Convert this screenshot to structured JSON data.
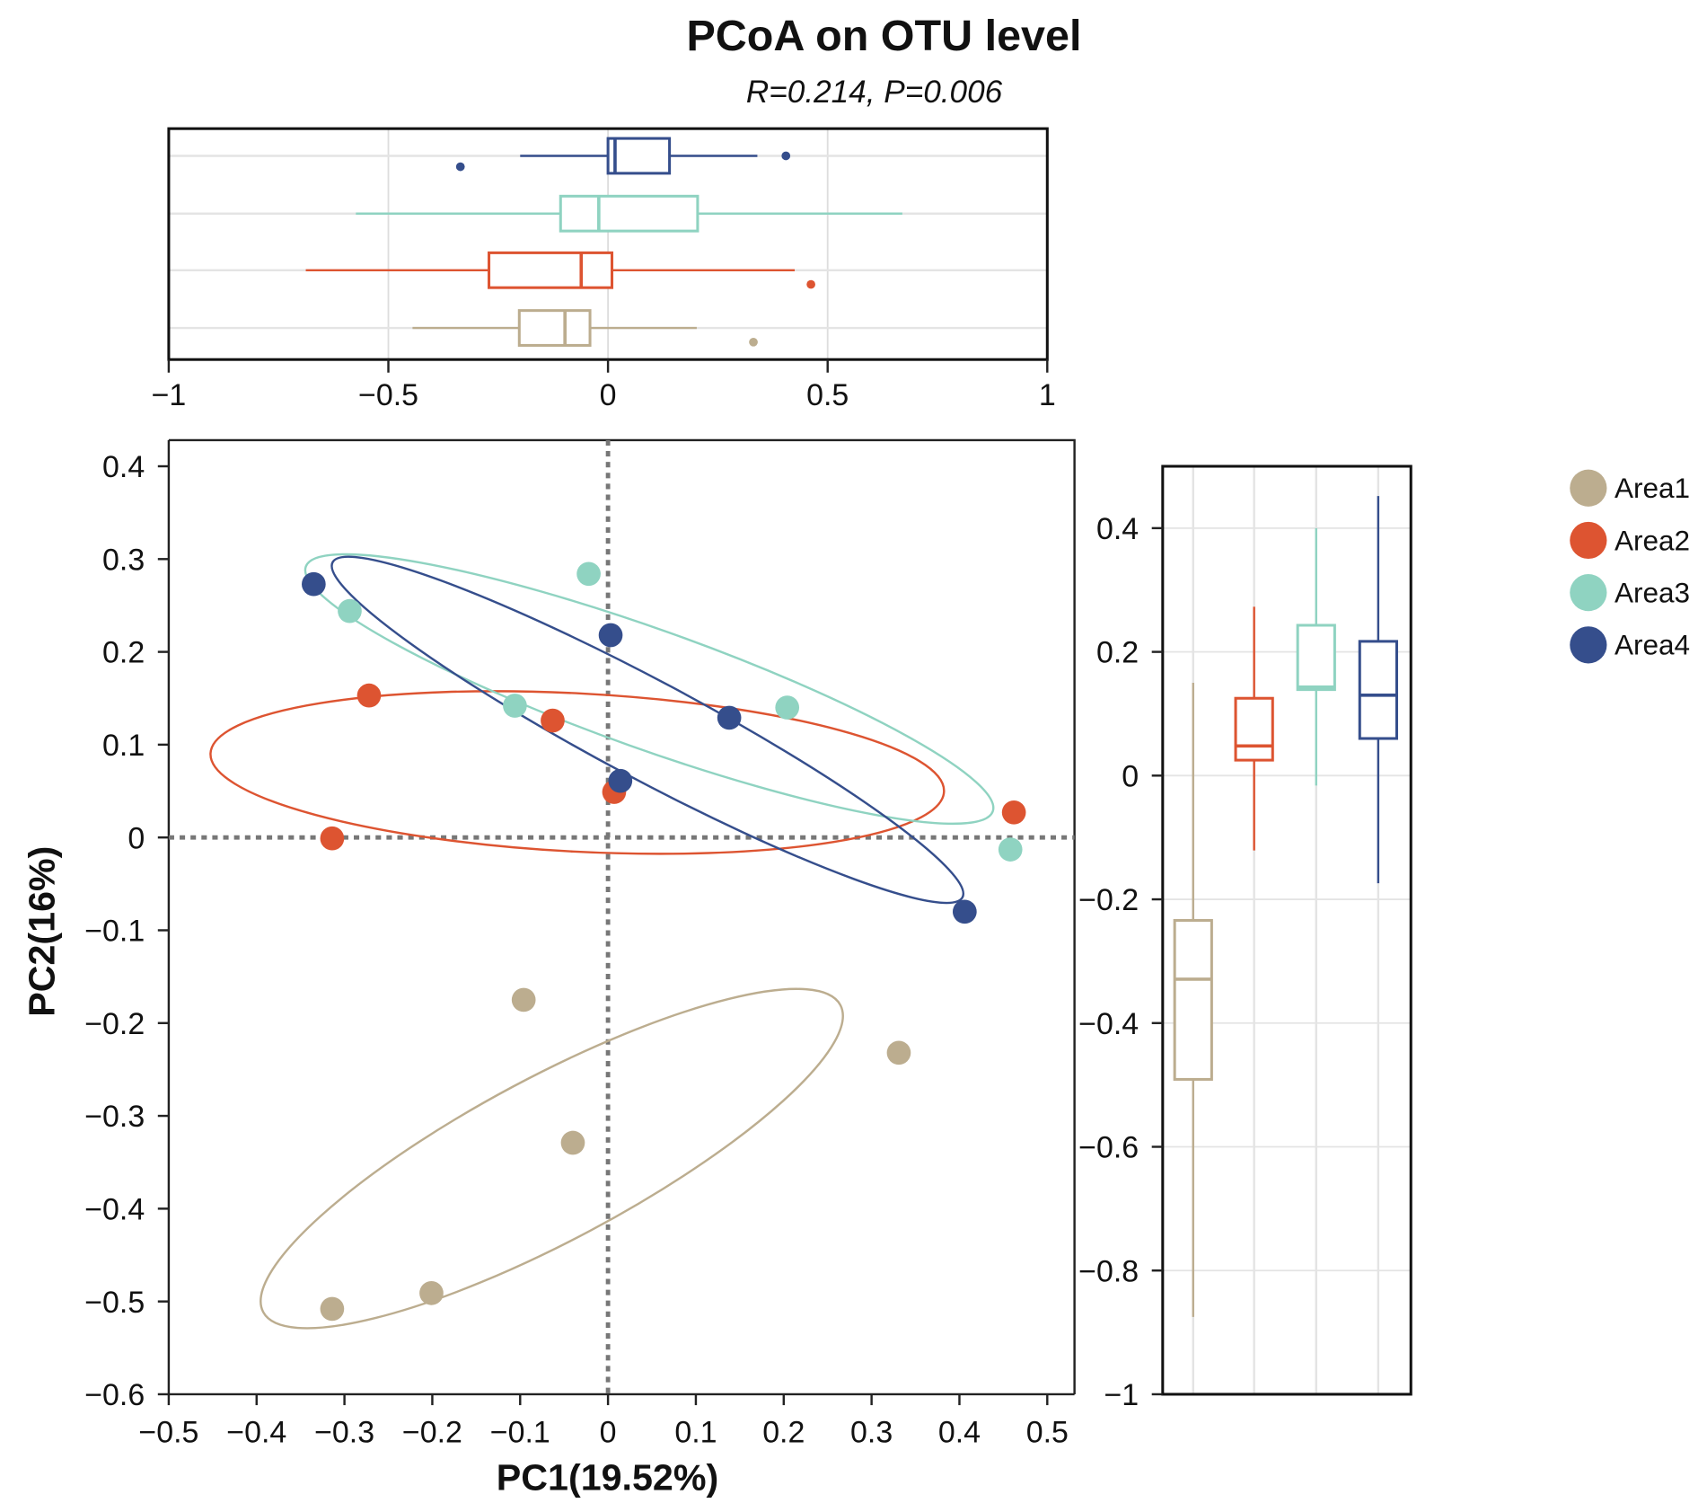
{
  "chart_data": {
    "type": "scatter",
    "title": "PCoA on OTU level",
    "subtitle": "R=0.214, P=0.006",
    "xlabel": "PC1(19.52%)",
    "ylabel": "PC2(16%)",
    "xlim": [
      -0.5,
      0.5
    ],
    "ylim": [
      -0.6,
      0.4
    ],
    "xticks": [
      "−0.5",
      "−0.4",
      "−0.3",
      "−0.2",
      "−0.1",
      "0",
      "0.1",
      "0.2",
      "0.3",
      "0.4",
      "0.5"
    ],
    "yticks": [
      "0.4",
      "0.3",
      "0.2",
      "0.1",
      "0",
      "−0.1",
      "−0.2",
      "−0.3",
      "−0.4",
      "−0.5",
      "−0.6"
    ],
    "legend": {
      "placement": "right",
      "entries": [
        "Area1",
        "Area2",
        "Area3",
        "Area4"
      ]
    },
    "series": [
      {
        "name": "Area1",
        "color": "#bcad8f",
        "points": [
          [
            -0.096,
            -0.175
          ],
          [
            -0.04,
            -0.329
          ],
          [
            0.331,
            -0.232
          ],
          [
            -0.201,
            -0.491
          ],
          [
            -0.314,
            -0.508
          ]
        ],
        "ellipse": {
          "cx": -0.064,
          "cy": -0.346,
          "a": 0.372,
          "b": 0.093,
          "angle_deg": -28
        }
      },
      {
        "name": "Area2",
        "color": "#dd5431",
        "points": [
          [
            -0.272,
            0.153
          ],
          [
            -0.063,
            0.126
          ],
          [
            0.007,
            0.049
          ],
          [
            -0.314,
            -0.001
          ],
          [
            0.462,
            0.027
          ]
        ],
        "ellipse": {
          "cx": -0.035,
          "cy": 0.07,
          "a": 0.418,
          "b": 0.09,
          "angle_deg": 3
        }
      },
      {
        "name": "Area3",
        "color": "#8fd3c1",
        "points": [
          [
            -0.022,
            0.284
          ],
          [
            -0.294,
            0.244
          ],
          [
            -0.106,
            0.142
          ],
          [
            0.204,
            0.14
          ],
          [
            0.458,
            -0.013
          ]
        ],
        "ellipse": {
          "cx": 0.047,
          "cy": 0.16,
          "a": 0.415,
          "b": 0.068,
          "angle_deg": 19.6
        }
      },
      {
        "name": "Area4",
        "color": "#354e8c",
        "points": [
          [
            -0.335,
            0.273
          ],
          [
            0.003,
            0.218
          ],
          [
            0.138,
            0.129
          ],
          [
            0.014,
            0.061
          ],
          [
            0.406,
            -0.08
          ]
        ],
        "ellipse": {
          "cx": 0.045,
          "cy": 0.116,
          "a": 0.406,
          "b": 0.056,
          "angle_deg": 28
        }
      }
    ],
    "top_boxplot": {
      "axis": "PC1",
      "xlim": [
        -1,
        1
      ],
      "xticks": [
        "−1",
        "−0.5",
        "0",
        "0.5",
        "1"
      ],
      "boxes": [
        {
          "name": "Area4",
          "whisker": [
            -0.2,
            0.34
          ],
          "q1": 0.0,
          "median": 0.016,
          "q3": 0.14,
          "outliers": [
            -0.336,
            0.405
          ]
        },
        {
          "name": "Area3",
          "whisker": [
            -0.574,
            0.67
          ],
          "q1": -0.108,
          "median": -0.021,
          "q3": 0.204,
          "outliers": []
        },
        {
          "name": "Area2",
          "whisker": [
            -0.688,
            0.425
          ],
          "q1": -0.271,
          "median": -0.061,
          "q3": 0.009,
          "outliers": [
            0.462
          ]
        },
        {
          "name": "Area1",
          "whisker": [
            -0.445,
            0.202
          ],
          "q1": -0.202,
          "median": -0.098,
          "q3": -0.041,
          "outliers": [
            0.331
          ]
        }
      ]
    },
    "right_boxplot": {
      "axis": "PC2",
      "ylim": [
        -1,
        0.5
      ],
      "yticks": [
        "0.4",
        "0.2",
        "0",
        "−0.2",
        "−0.4",
        "−0.6",
        "−0.8",
        "−1"
      ],
      "boxes": [
        {
          "name": "Area1",
          "whisker": [
            -0.875,
            0.15
          ],
          "q1": -0.491,
          "median": -0.329,
          "q3": -0.234
        },
        {
          "name": "Area2",
          "whisker": [
            -0.121,
            0.273
          ],
          "q1": 0.025,
          "median": 0.048,
          "q3": 0.125
        },
        {
          "name": "Area3",
          "whisker": [
            -0.016,
            0.4
          ],
          "q1": 0.139,
          "median": 0.143,
          "q3": 0.243
        },
        {
          "name": "Area4",
          "whisker": [
            -0.174,
            0.452
          ],
          "q1": 0.06,
          "median": 0.13,
          "q3": 0.217
        }
      ]
    }
  }
}
